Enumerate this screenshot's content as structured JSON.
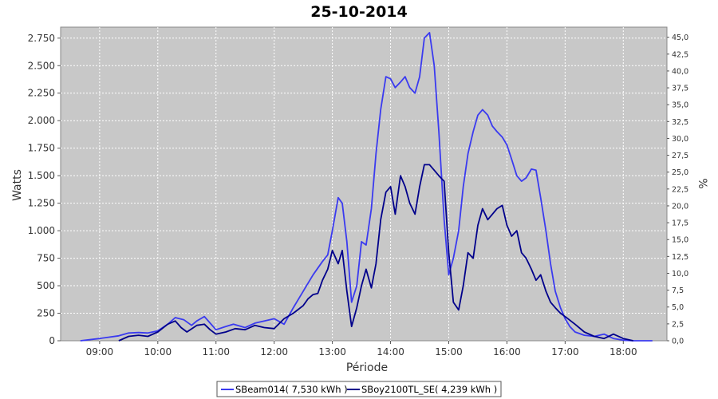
{
  "chart_data": {
    "type": "line",
    "title": "25-10-2014",
    "xlabel": "Période",
    "ylabel": "Watts",
    "y2label": "%",
    "xlim": [
      8.33,
      18.75
    ],
    "ylim": [
      0,
      2850
    ],
    "y2lim": [
      0,
      46.5
    ],
    "grid": true,
    "legend_position": "bottom",
    "plot_background": "#c8c8c8",
    "x_tick_labels": [
      "09:00",
      "10:00",
      "11:00",
      "12:00",
      "13:00",
      "14:00",
      "15:00",
      "16:00",
      "17:00",
      "18:00"
    ],
    "x_ticks": [
      9,
      10,
      11,
      12,
      13,
      14,
      15,
      16,
      17,
      18
    ],
    "y_ticks": [
      0,
      250,
      500,
      750,
      1000,
      1250,
      1500,
      1750,
      2000,
      2250,
      2500,
      2750
    ],
    "y_tick_labels": [
      "0",
      "250",
      "500",
      "750",
      "1.000",
      "1.250",
      "1.500",
      "1.750",
      "2.000",
      "2.250",
      "2.500",
      "2.750"
    ],
    "y2_ticks": [
      0,
      2.5,
      5,
      7.5,
      10,
      12.5,
      15,
      17.5,
      20,
      22.5,
      25,
      27.5,
      30,
      32.5,
      35,
      37.5,
      40,
      42.5,
      45
    ],
    "y2_tick_labels": [
      "0,0",
      "2,5",
      "5,0",
      "7,5",
      "10,0",
      "12,5",
      "15,0",
      "17,5",
      "20,0",
      "22,5",
      "25,0",
      "27,5",
      "30,0",
      "32,5",
      "35,0",
      "37,5",
      "40,0",
      "42,5",
      "45,0"
    ],
    "series": [
      {
        "name": "SBeam014( 7,530 kWh )",
        "color": "#3a3af0",
        "x": [
          8.67,
          9.0,
          9.33,
          9.5,
          9.67,
          9.83,
          10.0,
          10.17,
          10.3,
          10.45,
          10.58,
          10.67,
          10.8,
          10.9,
          11.0,
          11.17,
          11.3,
          11.5,
          11.67,
          11.83,
          12.0,
          12.17,
          12.33,
          12.5,
          12.67,
          12.83,
          12.92,
          13.0,
          13.1,
          13.17,
          13.25,
          13.33,
          13.42,
          13.5,
          13.58,
          13.67,
          13.75,
          13.83,
          13.92,
          14.0,
          14.08,
          14.17,
          14.25,
          14.33,
          14.42,
          14.5,
          14.58,
          14.67,
          14.75,
          14.83,
          14.92,
          15.0,
          15.08,
          15.17,
          15.25,
          15.33,
          15.42,
          15.5,
          15.58,
          15.67,
          15.75,
          15.83,
          15.92,
          16.0,
          16.08,
          16.17,
          16.25,
          16.33,
          16.42,
          16.5,
          16.58,
          16.67,
          16.75,
          16.83,
          16.92,
          17.0,
          17.08,
          17.17,
          17.33,
          17.5,
          17.67,
          17.83,
          18.0,
          18.17,
          18.5
        ],
        "y": [
          0,
          20,
          45,
          70,
          75,
          70,
          90,
          150,
          210,
          190,
          140,
          180,
          220,
          160,
          100,
          130,
          150,
          120,
          160,
          180,
          200,
          150,
          300,
          450,
          600,
          720,
          780,
          1000,
          1300,
          1250,
          900,
          350,
          500,
          900,
          870,
          1200,
          1700,
          2100,
          2400,
          2380,
          2300,
          2350,
          2400,
          2300,
          2250,
          2400,
          2750,
          2800,
          2500,
          1900,
          1100,
          600,
          750,
          1000,
          1400,
          1700,
          1900,
          2050,
          2100,
          2050,
          1950,
          1900,
          1850,
          1780,
          1650,
          1500,
          1450,
          1480,
          1560,
          1550,
          1300,
          1000,
          700,
          450,
          300,
          200,
          130,
          80,
          50,
          40,
          60,
          20,
          5,
          0,
          0
        ]
      },
      {
        "name": "SBoy2100TL_SE( 4,239 kWh )",
        "color": "#00008b",
        "x": [
          9.33,
          9.5,
          9.67,
          9.83,
          10.0,
          10.17,
          10.3,
          10.4,
          10.5,
          10.67,
          10.8,
          10.9,
          11.0,
          11.17,
          11.33,
          11.5,
          11.67,
          11.83,
          12.0,
          12.17,
          12.33,
          12.5,
          12.58,
          12.67,
          12.75,
          12.83,
          12.92,
          13.0,
          13.1,
          13.17,
          13.25,
          13.33,
          13.42,
          13.5,
          13.58,
          13.67,
          13.75,
          13.83,
          13.92,
          14.0,
          14.08,
          14.17,
          14.25,
          14.33,
          14.42,
          14.5,
          14.58,
          14.67,
          14.75,
          14.83,
          14.92,
          15.0,
          15.08,
          15.17,
          15.25,
          15.33,
          15.42,
          15.5,
          15.58,
          15.67,
          15.75,
          15.83,
          15.92,
          16.0,
          16.08,
          16.17,
          16.25,
          16.33,
          16.42,
          16.5,
          16.58,
          16.67,
          16.75,
          16.83,
          16.92,
          17.0,
          17.17,
          17.33,
          17.5,
          17.67,
          17.83,
          18.0,
          18.17
        ],
        "y": [
          0,
          40,
          50,
          40,
          80,
          150,
          180,
          120,
          80,
          140,
          150,
          100,
          60,
          80,
          110,
          100,
          140,
          120,
          110,
          200,
          250,
          320,
          380,
          420,
          430,
          550,
          650,
          820,
          700,
          820,
          450,
          130,
          300,
          500,
          650,
          480,
          700,
          1100,
          1350,
          1400,
          1150,
          1500,
          1400,
          1250,
          1150,
          1400,
          1600,
          1600,
          1550,
          1500,
          1450,
          800,
          350,
          280,
          500,
          800,
          750,
          1050,
          1200,
          1100,
          1150,
          1200,
          1230,
          1050,
          950,
          1000,
          800,
          750,
          650,
          550,
          600,
          450,
          350,
          300,
          250,
          220,
          150,
          80,
          40,
          20,
          60,
          20,
          0
        ]
      }
    ]
  }
}
